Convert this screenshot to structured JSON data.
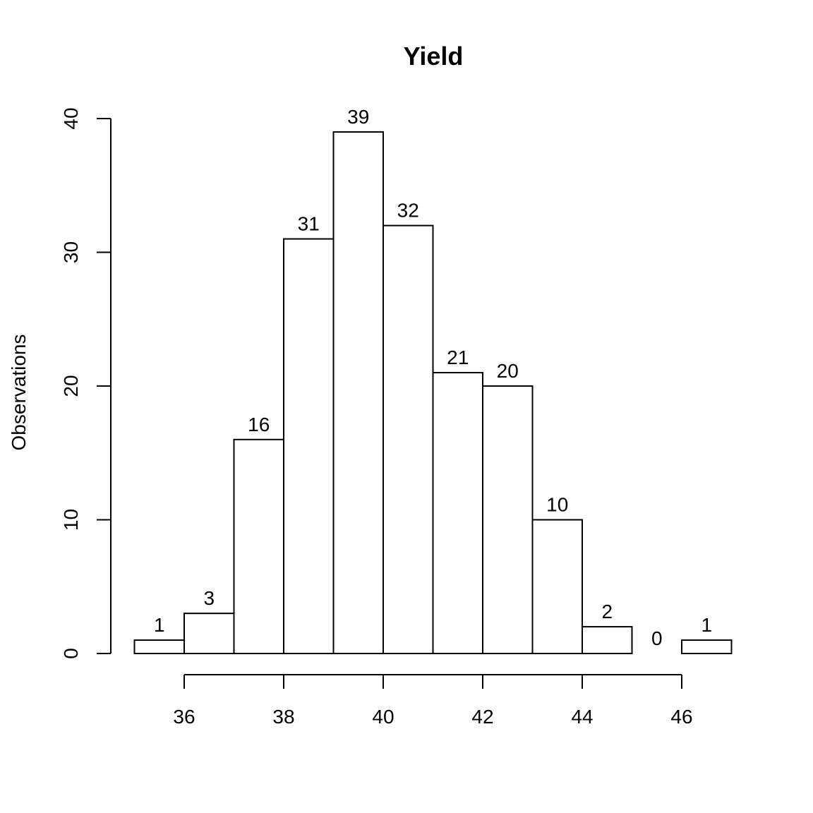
{
  "chart_data": {
    "type": "bar",
    "title": "Yield",
    "xlabel": "",
    "ylabel": "Observations",
    "bin_edges": [
      35,
      36,
      37,
      38,
      39,
      40,
      41,
      42,
      43,
      44,
      45,
      46,
      47
    ],
    "values": [
      1,
      3,
      16,
      31,
      39,
      32,
      21,
      20,
      10,
      2,
      0,
      1
    ],
    "data_labels": [
      "1",
      "3",
      "16",
      "31",
      "39",
      "32",
      "21",
      "20",
      "10",
      "2",
      "0",
      "1"
    ],
    "xticks": [
      36,
      38,
      40,
      42,
      44,
      46
    ],
    "xtick_labels": [
      "36",
      "38",
      "40",
      "42",
      "44",
      "46"
    ],
    "yticks": [
      0,
      10,
      20,
      30,
      40
    ],
    "ytick_labels": [
      "0",
      "10",
      "20",
      "30",
      "40"
    ],
    "xlim": [
      35,
      47
    ],
    "ylim": [
      0,
      40
    ],
    "grid": false,
    "legend": "none",
    "bar_fill": "#ffffff",
    "bar_stroke": "#000000"
  }
}
